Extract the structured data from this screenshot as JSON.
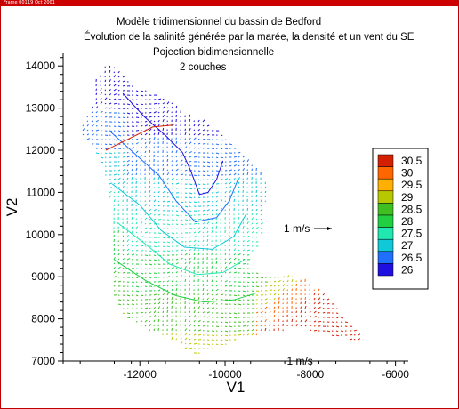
{
  "window": {
    "tab1": "Frame 001",
    "tab2": "19 Oct 2001"
  },
  "chart_data": {
    "type": "vector-contour",
    "titles": [
      "Modèle tridimensionnel du bassin de Bedford",
      "Évolution de la salinité générée par la marée, la densité et un vent du SE",
      "Pojection bidimensionnelle",
      "2 couches"
    ],
    "xlabel": "V1",
    "ylabel": "V2",
    "xlim": [
      -13800,
      -5700
    ],
    "ylim": [
      7000,
      14300
    ],
    "x_ticks": [
      -12000,
      -10000,
      -8000,
      -6000
    ],
    "y_ticks": [
      7000,
      8000,
      9000,
      10000,
      11000,
      12000,
      13000,
      14000
    ],
    "legend": {
      "placement": "right",
      "levels": [
        30.5,
        30,
        29.5,
        29,
        28.5,
        28,
        27.5,
        27,
        26.5,
        26
      ],
      "colors": [
        "#d42000",
        "#ff6600",
        "#ffb000",
        "#b8c800",
        "#40c020",
        "#20d040",
        "#20e8b0",
        "#10c8d8",
        "#2070ff",
        "#2010e0"
      ]
    },
    "reference_vector": {
      "label": "1 m/s"
    },
    "annotations": [
      {
        "text": "1 m/s",
        "x": -8550,
        "y": 7000
      }
    ]
  }
}
